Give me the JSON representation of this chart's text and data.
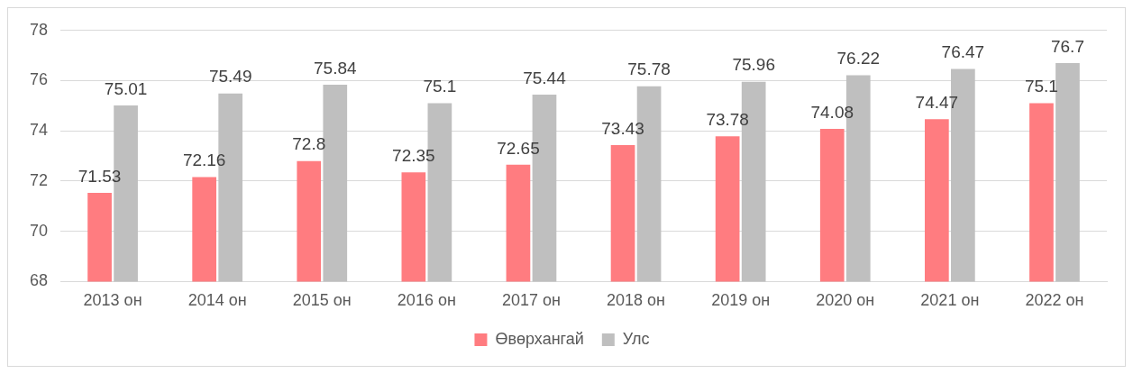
{
  "chart_data": {
    "type": "bar",
    "categories": [
      "2013 он",
      "2014 он",
      "2015 он",
      "2016 он",
      "2017 он",
      "2018 он",
      "2019 он",
      "2020 он",
      "2021 он",
      "2022 он"
    ],
    "series": [
      {
        "name": "Өвөрхангай",
        "color": "#ff7c80",
        "values": [
          71.53,
          72.16,
          72.8,
          72.35,
          72.65,
          73.43,
          73.78,
          74.08,
          74.47,
          75.1
        ]
      },
      {
        "name": "Улс",
        "color": "#bfbfbf",
        "values": [
          75.01,
          75.49,
          75.84,
          75.1,
          75.44,
          75.78,
          75.96,
          76.22,
          76.47,
          76.7
        ]
      }
    ],
    "ylim": [
      68,
      78
    ],
    "yticks": [
      68,
      70,
      72,
      74,
      76,
      78
    ],
    "grid": "y",
    "legend": "bottom",
    "data_labels": true
  }
}
